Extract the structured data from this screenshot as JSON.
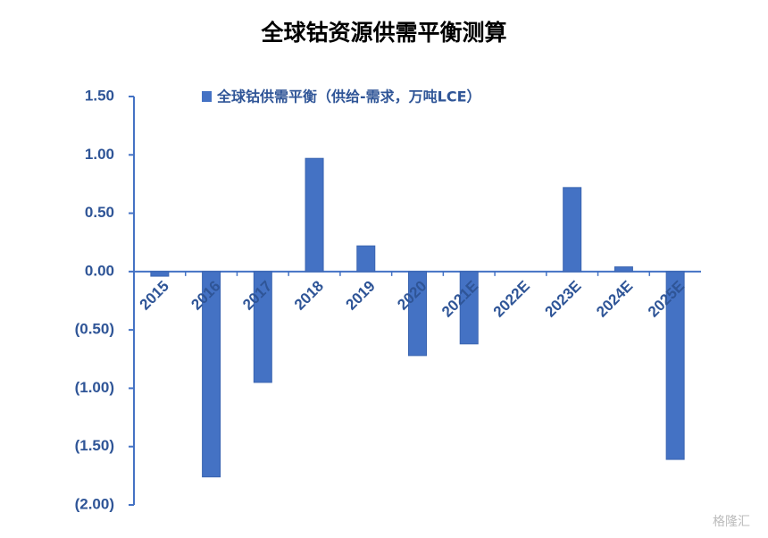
{
  "chart_data": {
    "type": "bar",
    "title": "全球钴资源供需平衡测算",
    "categories": [
      "2015",
      "2016",
      "2017",
      "2018",
      "2019",
      "2020",
      "2021E",
      "2022E",
      "2023E",
      "2024E",
      "2025E"
    ],
    "series": [
      {
        "name": "全球钴供需平衡（供给-需求，万吨LCE）",
        "color": "#4472c4",
        "values": [
          -0.04,
          -1.76,
          -0.95,
          0.97,
          0.22,
          -0.72,
          -0.62,
          0,
          0.72,
          0.04,
          -1.61
        ]
      }
    ],
    "ylim": [
      -2,
      1.5
    ],
    "yticks": [
      {
        "value": 1.5,
        "label": "1.50"
      },
      {
        "value": 1,
        "label": "1.00"
      },
      {
        "value": 0.5,
        "label": "0.50"
      },
      {
        "value": 0,
        "label": "0.00"
      },
      {
        "value": -0.5,
        "label": "(0.50)"
      },
      {
        "value": -1,
        "label": "(1.00)"
      },
      {
        "value": -1.5,
        "label": "(1.50)"
      },
      {
        "value": -2,
        "label": "(2.00)"
      }
    ],
    "legend": "top",
    "watermark": "格隆汇"
  }
}
